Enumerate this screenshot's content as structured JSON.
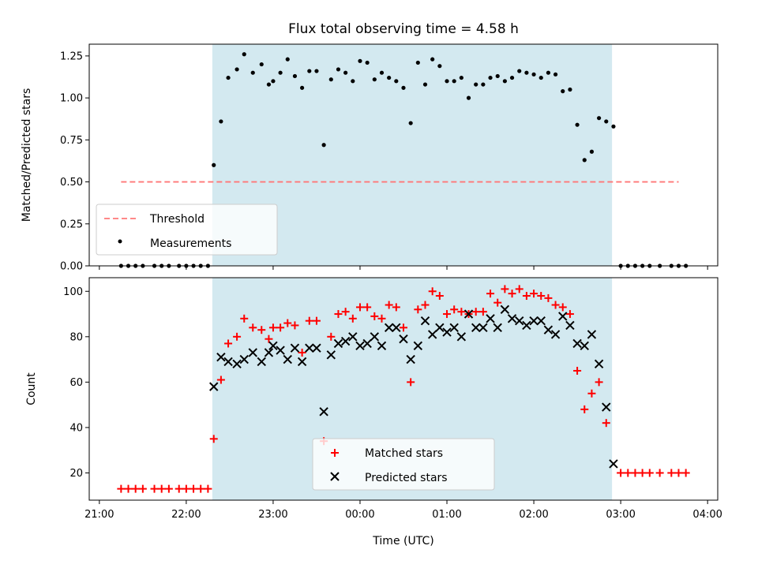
{
  "chart_data": [
    {
      "type": "scatter",
      "title": "Flux total observing time = 4.58 h",
      "xlabel": "",
      "ylabel": "Matched/Predicted stars",
      "ylim": [
        0,
        1.32
      ],
      "xlim_hours_utc": [
        "21:00",
        "04:00"
      ],
      "yticks": [
        "0.00",
        "0.25",
        "0.50",
        "0.75",
        "1.00",
        "1.25"
      ],
      "shaded_region": {
        "start": "22:18",
        "end": "02:54",
        "color": "#d3e9f0"
      },
      "threshold": {
        "name": "Threshold",
        "value": 0.5,
        "from": "21:15",
        "to": "03:40",
        "color": "#ff7777",
        "style": "dashed"
      },
      "series": [
        {
          "name": "Measurements",
          "color": "#000000",
          "marker": "dot",
          "points": [
            [
              "21:15",
              0
            ],
            [
              "21:20",
              0
            ],
            [
              "21:25",
              0
            ],
            [
              "21:30",
              0
            ],
            [
              "21:38",
              0
            ],
            [
              "21:43",
              0
            ],
            [
              "21:48",
              0
            ],
            [
              "21:55",
              0
            ],
            [
              "22:00",
              0
            ],
            [
              "22:05",
              0
            ],
            [
              "22:10",
              0
            ],
            [
              "22:15",
              0
            ],
            [
              "22:19",
              0.6
            ],
            [
              "22:24",
              0.86
            ],
            [
              "22:29",
              1.12
            ],
            [
              "22:35",
              1.17
            ],
            [
              "22:40",
              1.26
            ],
            [
              "22:46",
              1.15
            ],
            [
              "22:52",
              1.2
            ],
            [
              "22:57",
              1.08
            ],
            [
              "23:00",
              1.1
            ],
            [
              "23:05",
              1.15
            ],
            [
              "23:10",
              1.23
            ],
            [
              "23:15",
              1.13
            ],
            [
              "23:20",
              1.06
            ],
            [
              "23:25",
              1.16
            ],
            [
              "23:30",
              1.16
            ],
            [
              "23:35",
              0.72
            ],
            [
              "23:40",
              1.11
            ],
            [
              "23:45",
              1.17
            ],
            [
              "23:50",
              1.15
            ],
            [
              "23:55",
              1.1
            ],
            [
              "00:00",
              1.22
            ],
            [
              "00:05",
              1.21
            ],
            [
              "00:10",
              1.11
            ],
            [
              "00:15",
              1.15
            ],
            [
              "00:20",
              1.12
            ],
            [
              "00:25",
              1.1
            ],
            [
              "00:30",
              1.06
            ],
            [
              "00:35",
              0.85
            ],
            [
              "00:40",
              1.21
            ],
            [
              "00:45",
              1.08
            ],
            [
              "00:50",
              1.23
            ],
            [
              "00:55",
              1.19
            ],
            [
              "01:00",
              1.1
            ],
            [
              "01:05",
              1.1
            ],
            [
              "01:10",
              1.12
            ],
            [
              "01:15",
              1.0
            ],
            [
              "01:20",
              1.08
            ],
            [
              "01:25",
              1.08
            ],
            [
              "01:30",
              1.12
            ],
            [
              "01:35",
              1.13
            ],
            [
              "01:40",
              1.1
            ],
            [
              "01:45",
              1.12
            ],
            [
              "01:50",
              1.16
            ],
            [
              "01:55",
              1.15
            ],
            [
              "02:00",
              1.14
            ],
            [
              "02:05",
              1.12
            ],
            [
              "02:10",
              1.15
            ],
            [
              "02:15",
              1.14
            ],
            [
              "02:20",
              1.04
            ],
            [
              "02:25",
              1.05
            ],
            [
              "02:30",
              0.84
            ],
            [
              "02:35",
              0.63
            ],
            [
              "02:40",
              0.68
            ],
            [
              "02:45",
              0.88
            ],
            [
              "02:50",
              0.86
            ],
            [
              "02:55",
              0.83
            ],
            [
              "03:00",
              0
            ],
            [
              "03:05",
              0
            ],
            [
              "03:10",
              0
            ],
            [
              "03:15",
              0
            ],
            [
              "03:20",
              0
            ],
            [
              "03:27",
              0
            ],
            [
              "03:35",
              0
            ],
            [
              "03:40",
              0
            ],
            [
              "03:45",
              0
            ]
          ]
        }
      ]
    },
    {
      "type": "scatter",
      "title": "",
      "xlabel": "Time (UTC)",
      "ylabel": "Count",
      "ylim": [
        8,
        106
      ],
      "xticks": [
        "21:00",
        "22:00",
        "23:00",
        "00:00",
        "01:00",
        "02:00",
        "03:00",
        "04:00"
      ],
      "yticks": [
        "20",
        "40",
        "60",
        "80",
        "100"
      ],
      "shaded_region": {
        "start": "22:18",
        "end": "02:54",
        "color": "#d3e9f0"
      },
      "series": [
        {
          "name": "Matched stars",
          "color": "#ff0000",
          "marker": "plus",
          "points": [
            [
              "21:15",
              13
            ],
            [
              "21:20",
              13
            ],
            [
              "21:25",
              13
            ],
            [
              "21:30",
              13
            ],
            [
              "21:38",
              13
            ],
            [
              "21:43",
              13
            ],
            [
              "21:48",
              13
            ],
            [
              "21:55",
              13
            ],
            [
              "22:00",
              13
            ],
            [
              "22:05",
              13
            ],
            [
              "22:10",
              13
            ],
            [
              "22:15",
              13
            ],
            [
              "22:19",
              35
            ],
            [
              "22:24",
              61
            ],
            [
              "22:29",
              77
            ],
            [
              "22:35",
              80
            ],
            [
              "22:40",
              88
            ],
            [
              "22:46",
              84
            ],
            [
              "22:52",
              83
            ],
            [
              "22:57",
              79
            ],
            [
              "23:00",
              84
            ],
            [
              "23:05",
              84
            ],
            [
              "23:10",
              86
            ],
            [
              "23:15",
              85
            ],
            [
              "23:20",
              73
            ],
            [
              "23:25",
              87
            ],
            [
              "23:30",
              87
            ],
            [
              "23:35",
              34
            ],
            [
              "23:40",
              80
            ],
            [
              "23:45",
              90
            ],
            [
              "23:50",
              91
            ],
            [
              "23:55",
              88
            ],
            [
              "00:00",
              93
            ],
            [
              "00:05",
              93
            ],
            [
              "00:10",
              89
            ],
            [
              "00:15",
              88
            ],
            [
              "00:20",
              94
            ],
            [
              "00:25",
              93
            ],
            [
              "00:30",
              84
            ],
            [
              "00:35",
              60
            ],
            [
              "00:40",
              92
            ],
            [
              "00:45",
              94
            ],
            [
              "00:50",
              100
            ],
            [
              "00:55",
              98
            ],
            [
              "01:00",
              90
            ],
            [
              "01:05",
              92
            ],
            [
              "01:10",
              91
            ],
            [
              "01:15",
              90
            ],
            [
              "01:20",
              91
            ],
            [
              "01:25",
              91
            ],
            [
              "01:30",
              99
            ],
            [
              "01:35",
              95
            ],
            [
              "01:40",
              101
            ],
            [
              "01:45",
              99
            ],
            [
              "01:50",
              101
            ],
            [
              "01:55",
              98
            ],
            [
              "02:00",
              99
            ],
            [
              "02:05",
              98
            ],
            [
              "02:10",
              97
            ],
            [
              "02:15",
              94
            ],
            [
              "02:20",
              93
            ],
            [
              "02:25",
              90
            ],
            [
              "02:30",
              65
            ],
            [
              "02:35",
              48
            ],
            [
              "02:40",
              55
            ],
            [
              "02:45",
              60
            ],
            [
              "02:50",
              42
            ],
            [
              "03:00",
              20
            ],
            [
              "03:05",
              20
            ],
            [
              "03:10",
              20
            ],
            [
              "03:15",
              20
            ],
            [
              "03:20",
              20
            ],
            [
              "03:27",
              20
            ],
            [
              "03:35",
              20
            ],
            [
              "03:40",
              20
            ],
            [
              "03:45",
              20
            ]
          ]
        },
        {
          "name": "Predicted stars",
          "color": "#000000",
          "marker": "x",
          "points": [
            [
              "22:19",
              58
            ],
            [
              "22:24",
              71
            ],
            [
              "22:29",
              69
            ],
            [
              "22:35",
              68
            ],
            [
              "22:40",
              70
            ],
            [
              "22:46",
              73
            ],
            [
              "22:52",
              69
            ],
            [
              "22:57",
              73
            ],
            [
              "23:00",
              76
            ],
            [
              "23:05",
              74
            ],
            [
              "23:10",
              70
            ],
            [
              "23:15",
              75
            ],
            [
              "23:20",
              69
            ],
            [
              "23:25",
              75
            ],
            [
              "23:30",
              75
            ],
            [
              "23:35",
              47
            ],
            [
              "23:40",
              72
            ],
            [
              "23:45",
              77
            ],
            [
              "23:50",
              78
            ],
            [
              "23:55",
              80
            ],
            [
              "00:00",
              76
            ],
            [
              "00:05",
              77
            ],
            [
              "00:10",
              80
            ],
            [
              "00:15",
              76
            ],
            [
              "00:20",
              84
            ],
            [
              "00:25",
              84
            ],
            [
              "00:30",
              79
            ],
            [
              "00:35",
              70
            ],
            [
              "00:40",
              76
            ],
            [
              "00:45",
              87
            ],
            [
              "00:50",
              81
            ],
            [
              "00:55",
              84
            ],
            [
              "01:00",
              82
            ],
            [
              "01:05",
              84
            ],
            [
              "01:10",
              80
            ],
            [
              "01:15",
              90
            ],
            [
              "01:20",
              84
            ],
            [
              "01:25",
              84
            ],
            [
              "01:30",
              88
            ],
            [
              "01:35",
              84
            ],
            [
              "01:40",
              92
            ],
            [
              "01:45",
              88
            ],
            [
              "01:50",
              87
            ],
            [
              "01:55",
              85
            ],
            [
              "02:00",
              87
            ],
            [
              "02:05",
              87
            ],
            [
              "02:10",
              83
            ],
            [
              "02:15",
              81
            ],
            [
              "02:20",
              89
            ],
            [
              "02:25",
              85
            ],
            [
              "02:30",
              77
            ],
            [
              "02:35",
              76
            ],
            [
              "02:40",
              81
            ],
            [
              "02:45",
              68
            ],
            [
              "02:50",
              49
            ],
            [
              "02:55",
              24
            ]
          ]
        }
      ]
    }
  ]
}
